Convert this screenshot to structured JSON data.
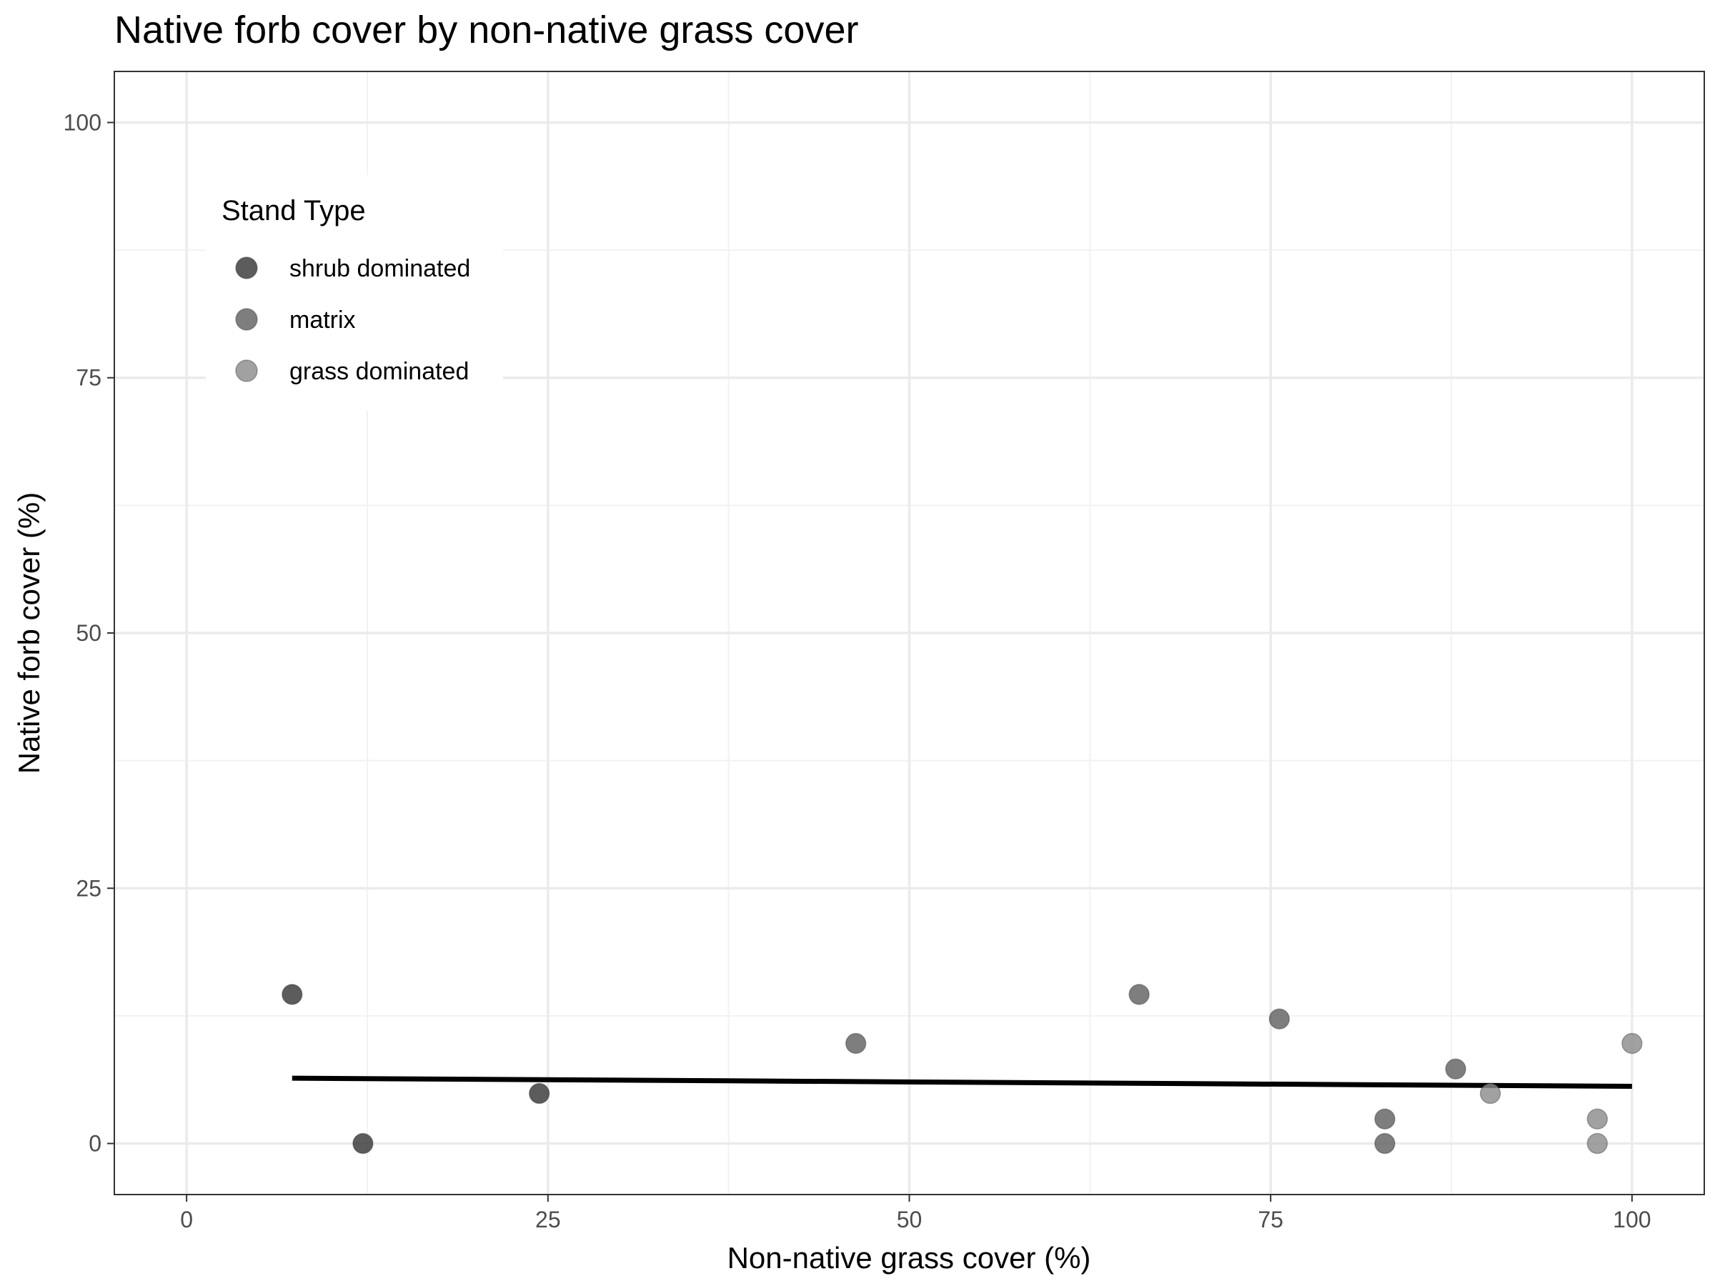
{
  "chart_data": {
    "type": "scatter",
    "title": "Native forb cover by non-native grass cover",
    "xlabel": "Non-native grass cover (%)",
    "ylabel": "Native forb cover (%)",
    "xlim": [
      -5,
      105
    ],
    "ylim": [
      -5,
      105
    ],
    "x_ticks": [
      0,
      25,
      50,
      75,
      100
    ],
    "y_ticks": [
      0,
      25,
      50,
      75,
      100
    ],
    "x_tick_labels": [
      "0",
      "25",
      "50",
      "75",
      "100"
    ],
    "y_tick_labels": [
      "0",
      "25",
      "50",
      "75",
      "100"
    ],
    "grid": true,
    "legend": {
      "title": "Stand Type",
      "position": "top-left inside"
    },
    "series": [
      {
        "name": "shrub dominated",
        "color": "#333333",
        "points": [
          [
            7.3,
            14.6
          ],
          [
            12.2,
            0
          ],
          [
            24.4,
            4.9
          ]
        ]
      },
      {
        "name": "matrix",
        "color": "#5e5e5e",
        "points": [
          [
            46.3,
            9.8
          ],
          [
            65.9,
            14.6
          ],
          [
            75.6,
            12.2
          ],
          [
            82.9,
            2.4
          ],
          [
            82.9,
            0
          ],
          [
            87.8,
            7.3
          ]
        ]
      },
      {
        "name": "grass dominated",
        "color": "#8a8a8a",
        "points": [
          [
            90.2,
            4.9
          ],
          [
            97.6,
            2.4
          ],
          [
            97.6,
            0
          ],
          [
            100,
            9.8
          ]
        ]
      }
    ],
    "trend_line": {
      "x": [
        7.3,
        100
      ],
      "y": [
        6.4,
        5.6
      ],
      "color": "#000000"
    }
  }
}
